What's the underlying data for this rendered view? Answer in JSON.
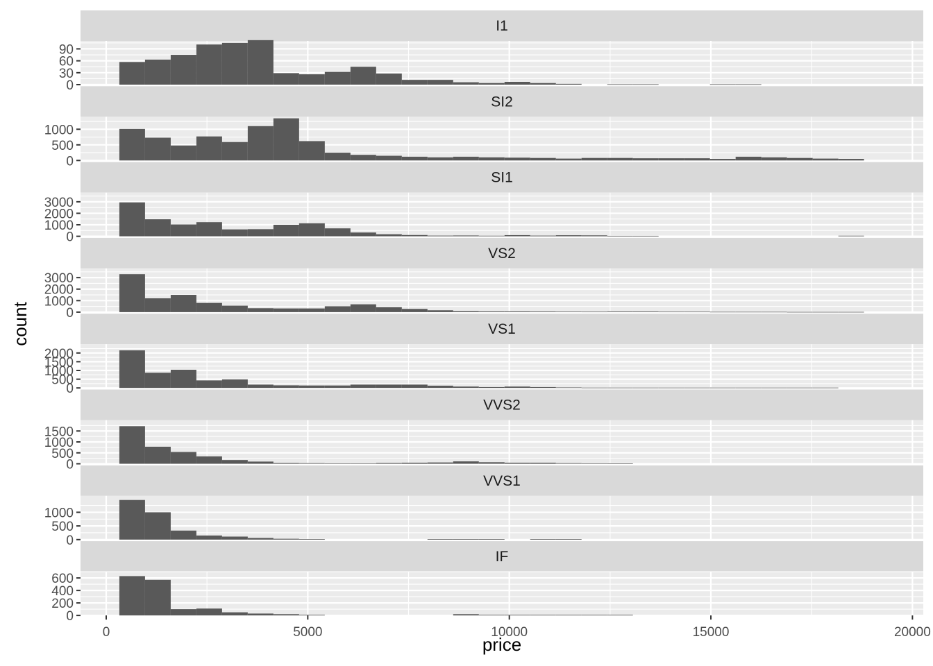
{
  "chart_data": {
    "type": "histogram",
    "facet_variable": "clarity",
    "xlabel": "price",
    "ylabel": "count",
    "xlim": [
      -637,
      20269
    ],
    "x_ticks": [
      0,
      5000,
      10000,
      15000,
      20000
    ],
    "x_tick_labels": [
      "0",
      "5000",
      "10000",
      "15000",
      "20000"
    ],
    "bin_width": 637,
    "bin_starts": [
      326,
      963,
      1600,
      2237,
      2874,
      3511,
      4148,
      4785,
      5422,
      6059,
      6696,
      7333,
      7970,
      8607,
      9244,
      9881,
      10518,
      11155,
      11792,
      12429,
      13066,
      13703,
      14340,
      14977,
      15614,
      16251,
      16888,
      17525,
      18162
    ],
    "grid": "on",
    "legend": "none",
    "colors": {
      "bar": "#595959",
      "panel_background": "#EBEBEB",
      "grid_major": "#FFFFFF",
      "strip_background": "#D9D9D9",
      "strip_text": "#1A1A1A",
      "axis_text": "#4D4D4D",
      "axis_title": "#000000"
    },
    "facets": [
      {
        "label": "I1",
        "ylim": [
          0,
          110
        ],
        "y_ticks": [
          0,
          30,
          60,
          90
        ],
        "y_tick_labels": [
          "0",
          "30",
          "60",
          "90"
        ],
        "values": [
          57,
          63,
          75,
          101,
          105,
          112,
          29,
          26,
          32,
          45,
          28,
          12,
          12,
          6,
          4,
          7,
          4,
          2,
          0,
          1,
          1,
          0,
          0,
          1,
          1,
          0,
          0,
          0,
          0
        ]
      },
      {
        "label": "SI2",
        "ylim": [
          0,
          1400
        ],
        "y_ticks": [
          0,
          500,
          1000
        ],
        "y_tick_labels": [
          "0",
          "500",
          "1000"
        ],
        "values": [
          1010,
          730,
          480,
          770,
          590,
          1100,
          1350,
          620,
          250,
          180,
          150,
          120,
          100,
          120,
          100,
          90,
          80,
          60,
          80,
          80,
          70,
          70,
          70,
          50,
          120,
          100,
          80,
          60,
          50
        ]
      },
      {
        "label": "SI1",
        "ylim": [
          0,
          3800
        ],
        "y_ticks": [
          0,
          1000,
          2000,
          3000
        ],
        "y_tick_labels": [
          "0",
          "1000",
          "2000",
          "3000"
        ],
        "values": [
          2950,
          1480,
          1030,
          1230,
          600,
          620,
          1000,
          1130,
          690,
          330,
          180,
          110,
          60,
          70,
          50,
          100,
          60,
          90,
          80,
          40,
          40,
          0,
          0,
          0,
          0,
          0,
          0,
          0,
          50
        ]
      },
      {
        "label": "VS2",
        "ylim": [
          0,
          3800
        ],
        "y_ticks": [
          0,
          1000,
          2000,
          3000
        ],
        "y_tick_labels": [
          "0",
          "1000",
          "2000",
          "3000"
        ],
        "values": [
          3300,
          1200,
          1500,
          800,
          560,
          340,
          320,
          320,
          510,
          680,
          430,
          280,
          160,
          90,
          70,
          70,
          60,
          50,
          40,
          60,
          60,
          40,
          40,
          30,
          30,
          30,
          20,
          20,
          20
        ]
      },
      {
        "label": "VS1",
        "ylim": [
          0,
          2500
        ],
        "y_ticks": [
          0,
          500,
          1000,
          1500,
          2000
        ],
        "y_tick_labels": [
          "0",
          "500",
          "1000",
          "1500",
          "2000"
        ],
        "values": [
          2150,
          870,
          1040,
          430,
          490,
          190,
          150,
          140,
          140,
          190,
          190,
          190,
          130,
          80,
          50,
          80,
          50,
          30,
          20,
          20,
          20,
          20,
          20,
          20,
          20,
          20,
          20,
          20,
          0
        ]
      },
      {
        "label": "VVS2",
        "ylim": [
          0,
          2000
        ],
        "y_ticks": [
          0,
          500,
          1000,
          1500
        ],
        "y_tick_labels": [
          "0",
          "500",
          "1000",
          "1500"
        ],
        "values": [
          1720,
          780,
          540,
          340,
          170,
          100,
          40,
          30,
          20,
          20,
          40,
          50,
          60,
          110,
          70,
          50,
          50,
          30,
          20,
          10,
          0,
          0,
          0,
          0,
          0,
          0,
          0,
          0,
          0
        ]
      },
      {
        "label": "VVS1",
        "ylim": [
          0,
          1600
        ],
        "y_ticks": [
          0,
          500,
          1000
        ],
        "y_tick_labels": [
          "0",
          "500",
          "1000"
        ],
        "values": [
          1450,
          1000,
          330,
          150,
          110,
          60,
          30,
          20,
          0,
          0,
          0,
          0,
          20,
          20,
          20,
          0,
          20,
          20,
          0,
          0,
          0,
          0,
          0,
          0,
          0,
          0,
          0,
          0,
          0
        ]
      },
      {
        "label": "IF",
        "ylim": [
          0,
          700
        ],
        "y_ticks": [
          0,
          200,
          400,
          600
        ],
        "y_tick_labels": [
          "0",
          "200",
          "400",
          "600"
        ],
        "values": [
          630,
          570,
          100,
          110,
          50,
          30,
          20,
          10,
          0,
          0,
          0,
          0,
          0,
          20,
          10,
          10,
          10,
          10,
          10,
          10,
          0,
          0,
          0,
          0,
          0,
          0,
          0,
          0,
          0
        ]
      }
    ]
  }
}
